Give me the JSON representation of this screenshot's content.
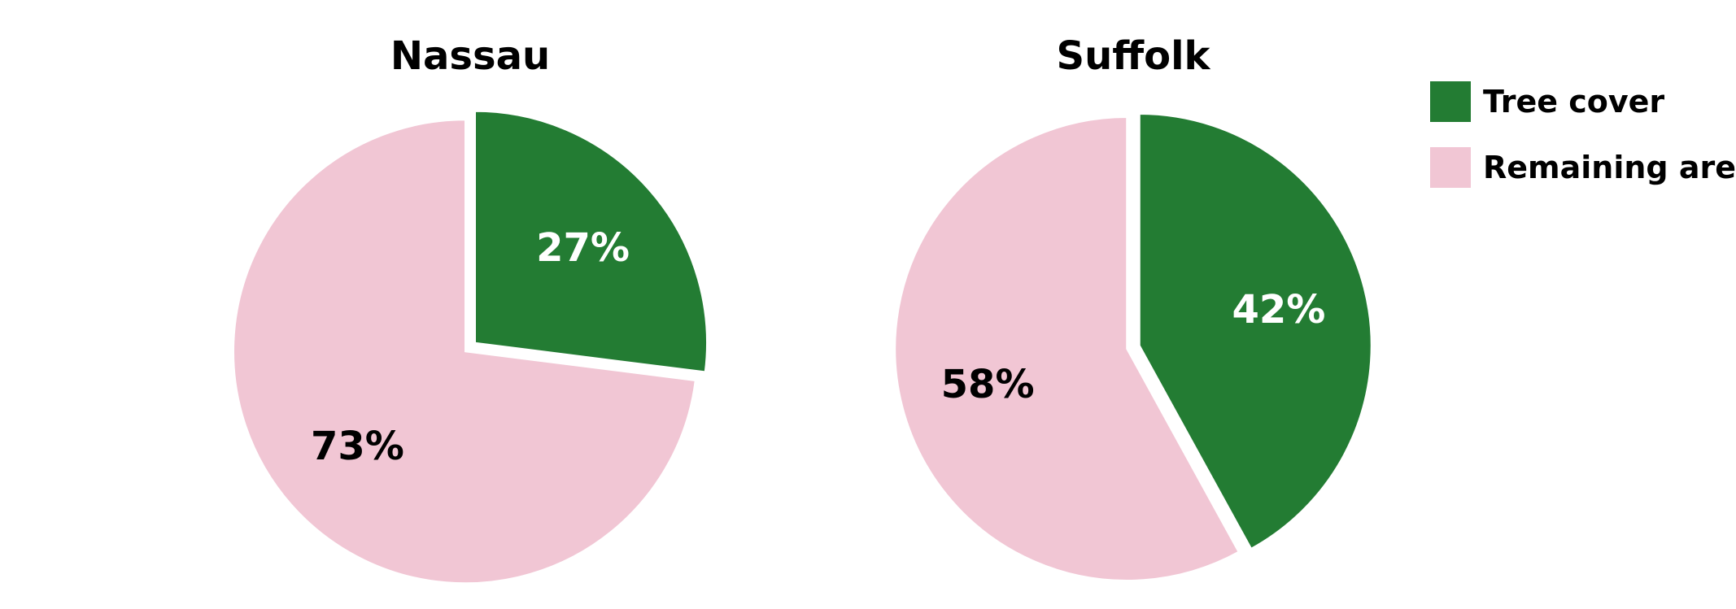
{
  "chart_data": {
    "type": "pie",
    "charts": [
      {
        "title": "Nassau",
        "slices": [
          {
            "label": "Tree cover",
            "value": 27,
            "display": "27%"
          },
          {
            "label": "Remaining area",
            "value": 73,
            "display": "73%"
          }
        ]
      },
      {
        "title": "Suffolk",
        "slices": [
          {
            "label": "Tree cover",
            "value": 42,
            "display": "42%"
          },
          {
            "label": "Remaining area",
            "value": 58,
            "display": "58%"
          }
        ]
      }
    ],
    "legend": {
      "position": "right",
      "items": [
        {
          "label": "Tree cover",
          "color": "#237c33"
        },
        {
          "label": "Remaining area",
          "color": "#f1c6d4"
        }
      ]
    },
    "label_colors": {
      "Tree cover": "#ffffff",
      "Remaining area": "#000000"
    }
  }
}
